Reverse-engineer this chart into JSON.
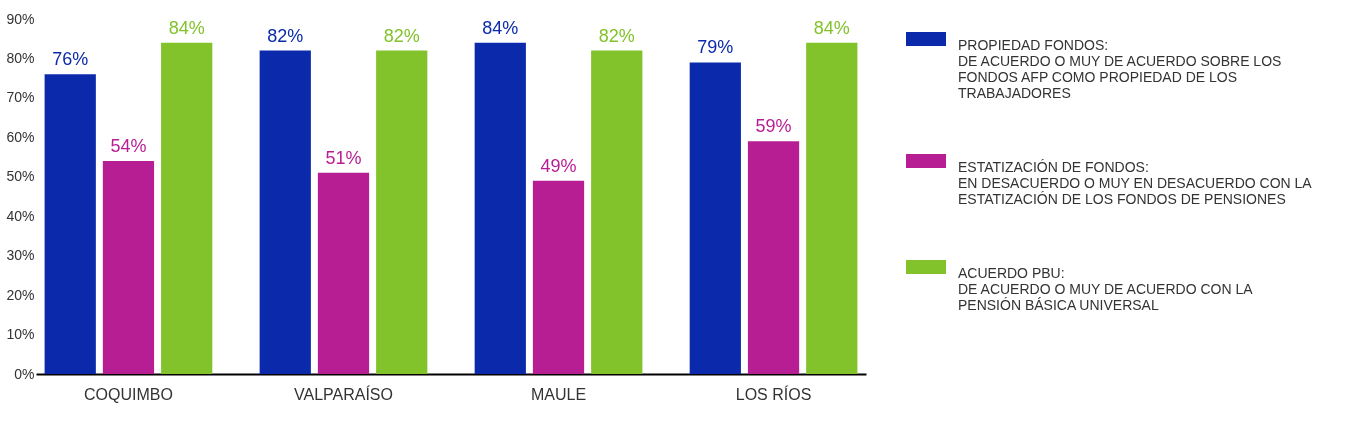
{
  "chart_data": {
    "type": "bar",
    "categories": [
      "COQUIMBO",
      "VALPARAÍSO",
      "MAULE",
      "LOS RÍOS"
    ],
    "series": [
      {
        "name": "PROPIEDAD FONDOS: DE ACUERDO O MUY DE ACUERDO SOBRE LOS FONDOS AFP COMO PROPIEDAD DE LOS TRABAJADORES",
        "color": "#0a2aab",
        "values": [
          76,
          82,
          84,
          79
        ],
        "value_labels": [
          "76%",
          "82%",
          "84%",
          "79%"
        ]
      },
      {
        "name": "ESTATIZACIÓN DE FONDOS: EN DESACUERDO O MUY EN DESACUERDO CON LA ESTATIZACIÓN DE LOS FONDOS DE PENSIONES",
        "color": "#b81e93",
        "values": [
          54,
          51,
          49,
          59
        ],
        "value_labels": [
          "54%",
          "51%",
          "49%",
          "59%"
        ]
      },
      {
        "name": "ACUERDO PBU: DE ACUERDO O MUY DE ACUERDO CON LA PENSIÓN BÁSICA UNIVERSAL",
        "color": "#82c22a",
        "values": [
          84,
          82,
          82,
          84
        ],
        "value_labels": [
          "84%",
          "82%",
          "82%",
          "84%"
        ]
      }
    ],
    "ylim": [
      0,
      90
    ],
    "yticks": [
      {
        "value": 0,
        "label": "0%"
      },
      {
        "value": 10,
        "label": "10%"
      },
      {
        "value": 20,
        "label": "20%"
      },
      {
        "value": 30,
        "label": "30%"
      },
      {
        "value": 40,
        "label": "40%"
      },
      {
        "value": 50,
        "label": "50%"
      },
      {
        "value": 60,
        "label": "60%"
      },
      {
        "value": 70,
        "label": "70%"
      },
      {
        "value": 80,
        "label": "80%"
      },
      {
        "value": 90,
        "label": "90%"
      }
    ],
    "grid": false,
    "legend": "right"
  }
}
